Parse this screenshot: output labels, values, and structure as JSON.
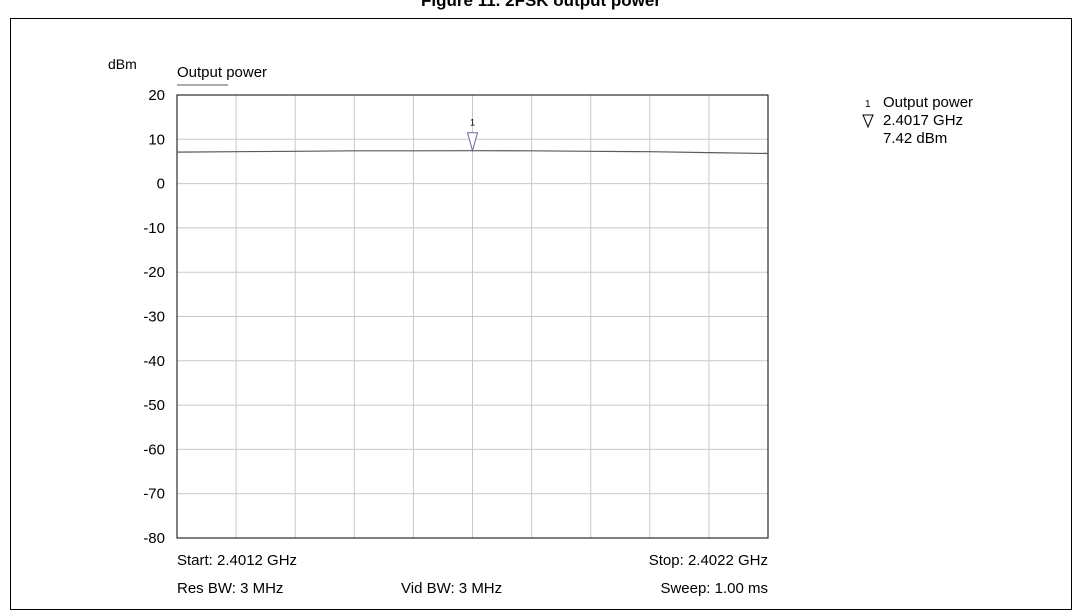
{
  "figure_title": "Figure 11. 2FSK output power",
  "chart_data": {
    "type": "line",
    "title": "",
    "ylabel": "dBm",
    "xlabel": "",
    "ylim": [
      -80,
      20
    ],
    "xlim": [
      2.4012,
      2.4022
    ],
    "x_unit": "GHz",
    "yticks": [
      20,
      10,
      0,
      -10,
      -20,
      -30,
      -40,
      -50,
      -60,
      -70,
      -80
    ],
    "grid": true,
    "legend": "top-left",
    "series": [
      {
        "name": "Output power",
        "color": "#5a5a5a",
        "x": [
          2.4012,
          2.4013,
          2.4014,
          2.4015,
          2.4016,
          2.4017,
          2.4018,
          2.4019,
          2.402,
          2.4021,
          2.4022
        ],
        "y": [
          7.1,
          7.2,
          7.3,
          7.4,
          7.4,
          7.42,
          7.4,
          7.3,
          7.2,
          7.0,
          6.8
        ]
      }
    ],
    "marker": {
      "label": "1",
      "x": 2.4017,
      "y": 7.42,
      "name": "Output power",
      "freq_text": "2.4017 GHz",
      "level_text": "7.42 dBm"
    },
    "footer": {
      "start": "Start: 2.4012 GHz",
      "stop": "Stop: 2.4022 GHz",
      "res_bw": "Res BW: 3 MHz",
      "vid_bw": "Vid BW: 3 MHz",
      "sweep": "Sweep: 1.00 ms"
    }
  }
}
